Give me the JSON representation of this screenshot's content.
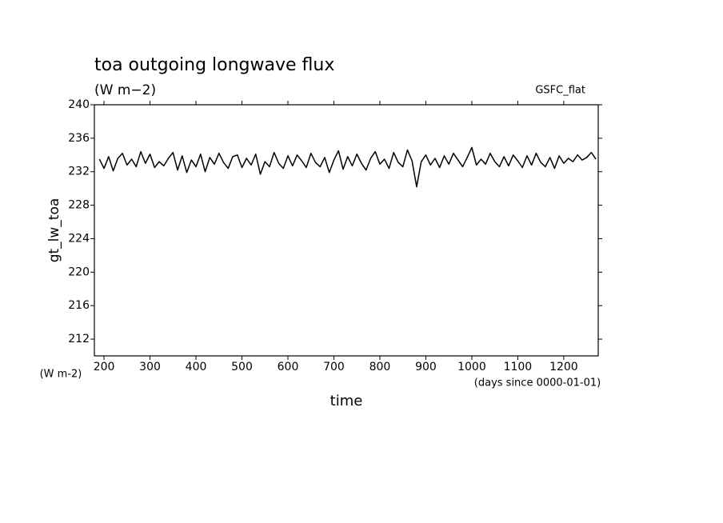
{
  "chart_data": {
    "type": "line",
    "title": "toa outgoing longwave flux",
    "subtitle": "(W m−2)",
    "annotation": "GSFC_flat",
    "ylabel": "gt_lw_toa",
    "yunits": "(W m-2)",
    "xlabel": "time",
    "xunits": "(days since 0000-01-01)",
    "color": "#000000",
    "x": [
      190,
      200,
      210,
      220,
      230,
      240,
      250,
      260,
      270,
      280,
      290,
      300,
      310,
      320,
      330,
      340,
      350,
      360,
      370,
      380,
      390,
      400,
      410,
      420,
      430,
      440,
      450,
      460,
      470,
      480,
      490,
      500,
      510,
      520,
      530,
      540,
      550,
      560,
      570,
      580,
      590,
      600,
      610,
      620,
      630,
      640,
      650,
      660,
      670,
      680,
      690,
      700,
      710,
      720,
      730,
      740,
      750,
      760,
      770,
      780,
      790,
      800,
      810,
      820,
      830,
      840,
      850,
      860,
      870,
      880,
      890,
      900,
      910,
      920,
      930,
      940,
      950,
      960,
      970,
      980,
      990,
      1000,
      1010,
      1020,
      1030,
      1040,
      1050,
      1060,
      1070,
      1080,
      1090,
      1100,
      1110,
      1120,
      1130,
      1140,
      1150,
      1160,
      1170,
      1180,
      1190,
      1200,
      1210,
      1220,
      1230,
      1240,
      1250,
      1260,
      1270
    ],
    "values": [
      233.5,
      232.4,
      233.8,
      232.1,
      233.6,
      234.2,
      232.8,
      233.5,
      232.6,
      234.4,
      233.0,
      234.1,
      232.5,
      233.2,
      232.7,
      233.6,
      234.3,
      232.2,
      233.9,
      231.9,
      233.4,
      232.6,
      234.1,
      232.0,
      233.7,
      232.9,
      234.2,
      233.1,
      232.4,
      233.8,
      234.0,
      232.5,
      233.6,
      232.8,
      234.1,
      231.7,
      233.2,
      232.6,
      234.3,
      233.0,
      232.4,
      233.9,
      232.7,
      234.0,
      233.3,
      232.5,
      234.2,
      233.1,
      232.6,
      233.7,
      231.9,
      233.4,
      234.5,
      232.3,
      233.8,
      232.7,
      234.1,
      233.0,
      232.2,
      233.6,
      234.4,
      232.9,
      233.5,
      232.4,
      234.3,
      233.1,
      232.6,
      234.6,
      233.3,
      230.2,
      233.2,
      234.0,
      232.8,
      233.6,
      232.5,
      233.9,
      232.9,
      234.2,
      233.4,
      232.6,
      233.7,
      234.9,
      232.8,
      233.5,
      232.9,
      234.2,
      233.2,
      232.6,
      233.8,
      232.7,
      234.0,
      233.3,
      232.5,
      233.9,
      232.8,
      234.2,
      233.1,
      232.6,
      233.7,
      232.4,
      233.9,
      233.0,
      233.6,
      233.2,
      234.0,
      233.4,
      233.7,
      234.3,
      233.5
    ],
    "xlim": [
      179,
      1275
    ],
    "xticks": [
      200,
      300,
      400,
      500,
      600,
      700,
      800,
      900,
      1000,
      1100,
      1200
    ],
    "ylim": [
      210,
      240
    ],
    "yticks": [
      212,
      216,
      220,
      224,
      228,
      232,
      236,
      240
    ]
  }
}
